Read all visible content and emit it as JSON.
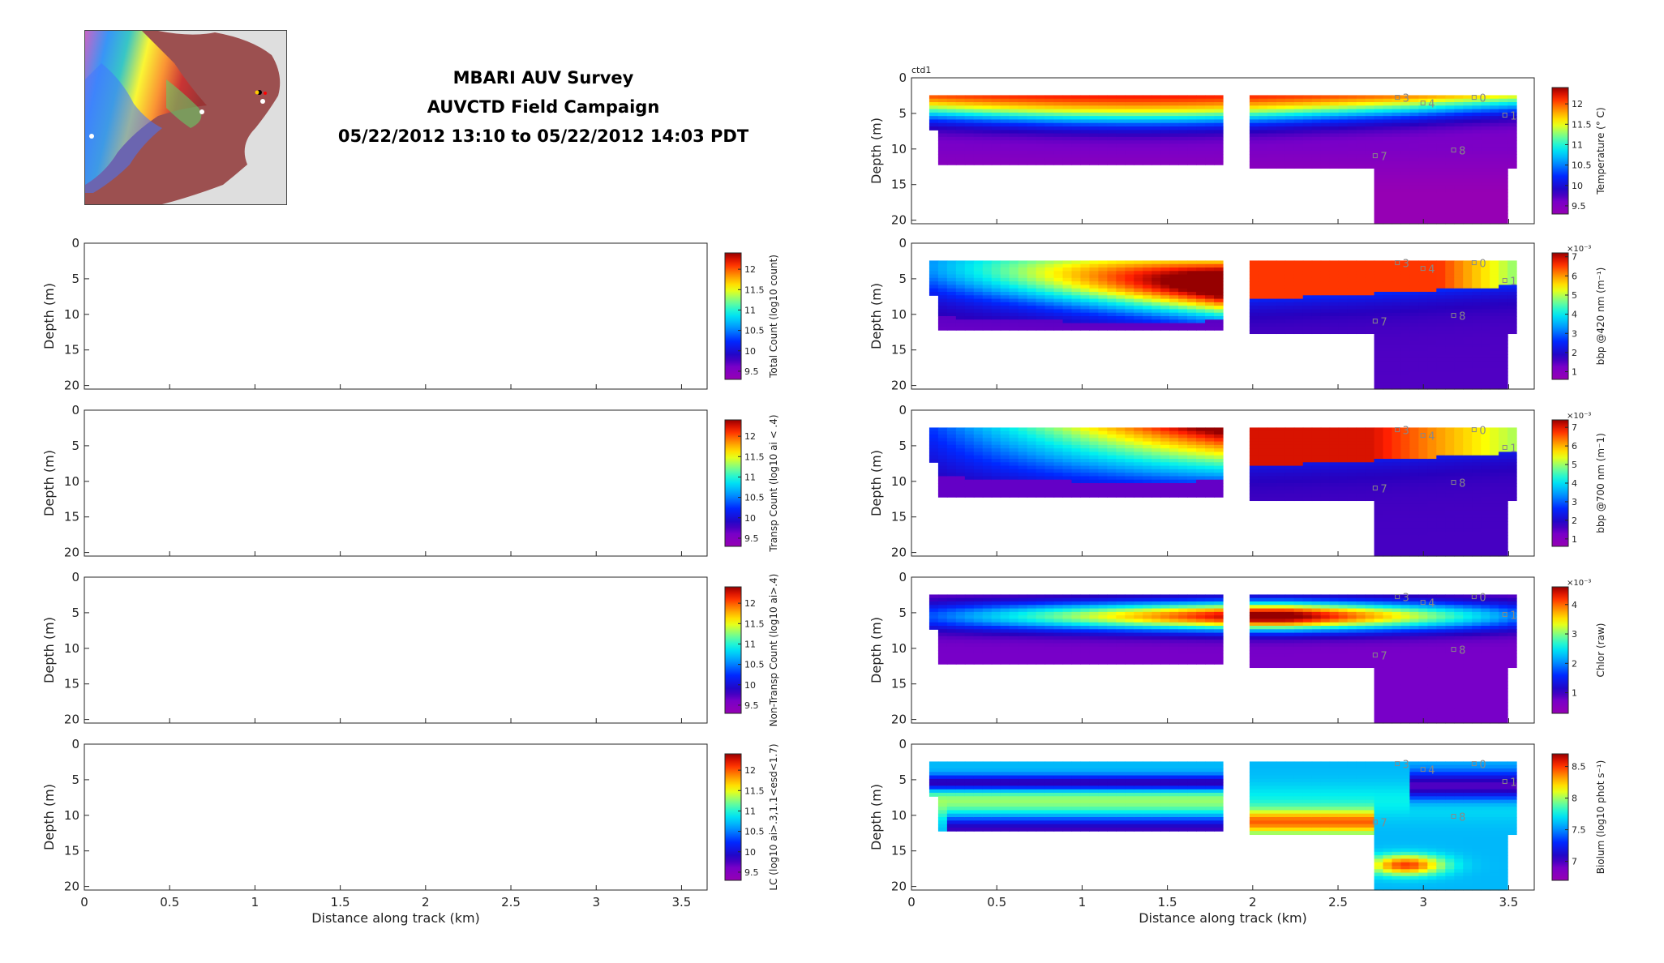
{
  "title": {
    "line1": "MBARI AUV Survey",
    "line2": "AUVCTD Field Campaign",
    "line3": "05/22/2012 13:10 to 05/22/2012 14:03 PDT"
  },
  "colors": {
    "land_red": "#9c5050",
    "map_background": "#e0e0e0",
    "axis": "#262626"
  },
  "chart_data": [
    {
      "type": "heatmap",
      "panel": "left-1",
      "xlabel": "",
      "ylabel": "Depth (m)",
      "xlim": [
        0,
        3.65
      ],
      "ylim": [
        20.5,
        0
      ],
      "yticks": [
        0,
        5,
        10,
        15,
        20
      ],
      "colorbar": {
        "label": "Total Count (log10 count)",
        "ticks": [
          "9.5",
          "10",
          "10.5",
          "11",
          "11.5",
          "12"
        ],
        "range": [
          9.3,
          12.4
        ]
      },
      "data": "no data plotted"
    },
    {
      "type": "heatmap",
      "panel": "left-2",
      "xlabel": "",
      "ylabel": "Depth (m)",
      "xlim": [
        0,
        3.65
      ],
      "ylim": [
        20.5,
        0
      ],
      "yticks": [
        0,
        5,
        10,
        15,
        20
      ],
      "colorbar": {
        "label": "Transp Count (log10 ai < .4)",
        "ticks": [
          "9.5",
          "10",
          "10.5",
          "11",
          "11.5",
          "12"
        ],
        "range": [
          9.3,
          12.4
        ]
      },
      "data": "no data plotted"
    },
    {
      "type": "heatmap",
      "panel": "left-3",
      "xlabel": "",
      "ylabel": "Depth (m)",
      "xlim": [
        0,
        3.65
      ],
      "ylim": [
        20.5,
        0
      ],
      "yticks": [
        0,
        5,
        10,
        15,
        20
      ],
      "colorbar": {
        "label": "Non-Transp Count (log10 ai>.4)",
        "ticks": [
          "9.5",
          "10",
          "10.5",
          "11",
          "11.5",
          "12"
        ],
        "range": [
          9.3,
          12.4
        ]
      },
      "data": "no data plotted"
    },
    {
      "type": "heatmap",
      "panel": "left-4",
      "xlabel": "Distance along track (km)",
      "ylabel": "Depth (m)",
      "xlim": [
        0,
        3.65
      ],
      "ylim": [
        20.5,
        0
      ],
      "xticks": [
        "0",
        "0.5",
        "1",
        "1.5",
        "2",
        "2.5",
        "3",
        "3.5"
      ],
      "yticks": [
        0,
        5,
        10,
        15,
        20
      ],
      "colorbar": {
        "label": "LC (log10 ai>.3,1.1<esd<1.7)",
        "ticks": [
          "9.5",
          "10",
          "10.5",
          "11",
          "11.5",
          "12"
        ],
        "range": [
          9.3,
          12.4
        ]
      },
      "data": "no data plotted"
    },
    {
      "type": "heatmap",
      "panel": "right-1",
      "label": "ctd1",
      "ylabel": "Depth (m)",
      "xlim": [
        0,
        3.65
      ],
      "ylim": [
        20.5,
        0
      ],
      "yticks": [
        0,
        5,
        10,
        15,
        20
      ],
      "colorbar": {
        "label": "Temperature (° C)",
        "ticks": [
          "9.5",
          "10",
          "10.5",
          "11",
          "11.5",
          "12"
        ],
        "range": [
          9.3,
          12.4
        ]
      },
      "field": "temperature",
      "description_values": {
        "surface": 12.3,
        "mid": 10.8,
        "deep": 9.5
      }
    },
    {
      "type": "heatmap",
      "panel": "right-2",
      "ylabel": "Depth (m)",
      "xlim": [
        0,
        3.65
      ],
      "ylim": [
        20.5,
        0
      ],
      "yticks": [
        0,
        5,
        10,
        15,
        20
      ],
      "colorbar": {
        "label": "bbp @420 nm (m⁻¹)",
        "ticks": [
          "1",
          "2",
          "3",
          "4",
          "5",
          "6",
          "7"
        ],
        "exponent": "×10⁻³",
        "range": [
          0.6,
          7.2
        ]
      },
      "field": "bbp420"
    },
    {
      "type": "heatmap",
      "panel": "right-3",
      "ylabel": "Depth (m)",
      "xlim": [
        0,
        3.65
      ],
      "ylim": [
        20.5,
        0
      ],
      "yticks": [
        0,
        5,
        10,
        15,
        20
      ],
      "colorbar": {
        "label": "bbp @700 nm (m⁻1)",
        "ticks": [
          "1",
          "2",
          "3",
          "4",
          "5",
          "6",
          "7"
        ],
        "exponent": "×10⁻³",
        "range": [
          0.6,
          7.4
        ]
      },
      "field": "bbp700"
    },
    {
      "type": "heatmap",
      "panel": "right-4",
      "ylabel": "Depth (m)",
      "xlim": [
        0,
        3.65
      ],
      "ylim": [
        20.5,
        0
      ],
      "yticks": [
        0,
        5,
        10,
        15,
        20
      ],
      "colorbar": {
        "label": "Chlor (raw)",
        "ticks": [
          "1",
          "2",
          "3",
          "4"
        ],
        "exponent": "×10⁻³",
        "range": [
          0.3,
          4.6
        ]
      },
      "field": "chlor"
    },
    {
      "type": "heatmap",
      "panel": "right-5",
      "xlabel": "Distance along track (km)",
      "ylabel": "Depth (m)",
      "xlim": [
        0,
        3.65
      ],
      "ylim": [
        20.5,
        0
      ],
      "xticks": [
        "0",
        "0.5",
        "1",
        "1.5",
        "2",
        "2.5",
        "3",
        "3.5"
      ],
      "yticks": [
        0,
        5,
        10,
        15,
        20
      ],
      "colorbar": {
        "label": "Biolum (log10 phot s⁻¹)",
        "ticks": [
          "7",
          "7.5",
          "8",
          "8.5"
        ],
        "range": [
          6.7,
          8.7
        ]
      },
      "field": "biolum"
    }
  ],
  "station_labels": [
    "3",
    "4",
    "0",
    "1",
    "7",
    "8"
  ]
}
